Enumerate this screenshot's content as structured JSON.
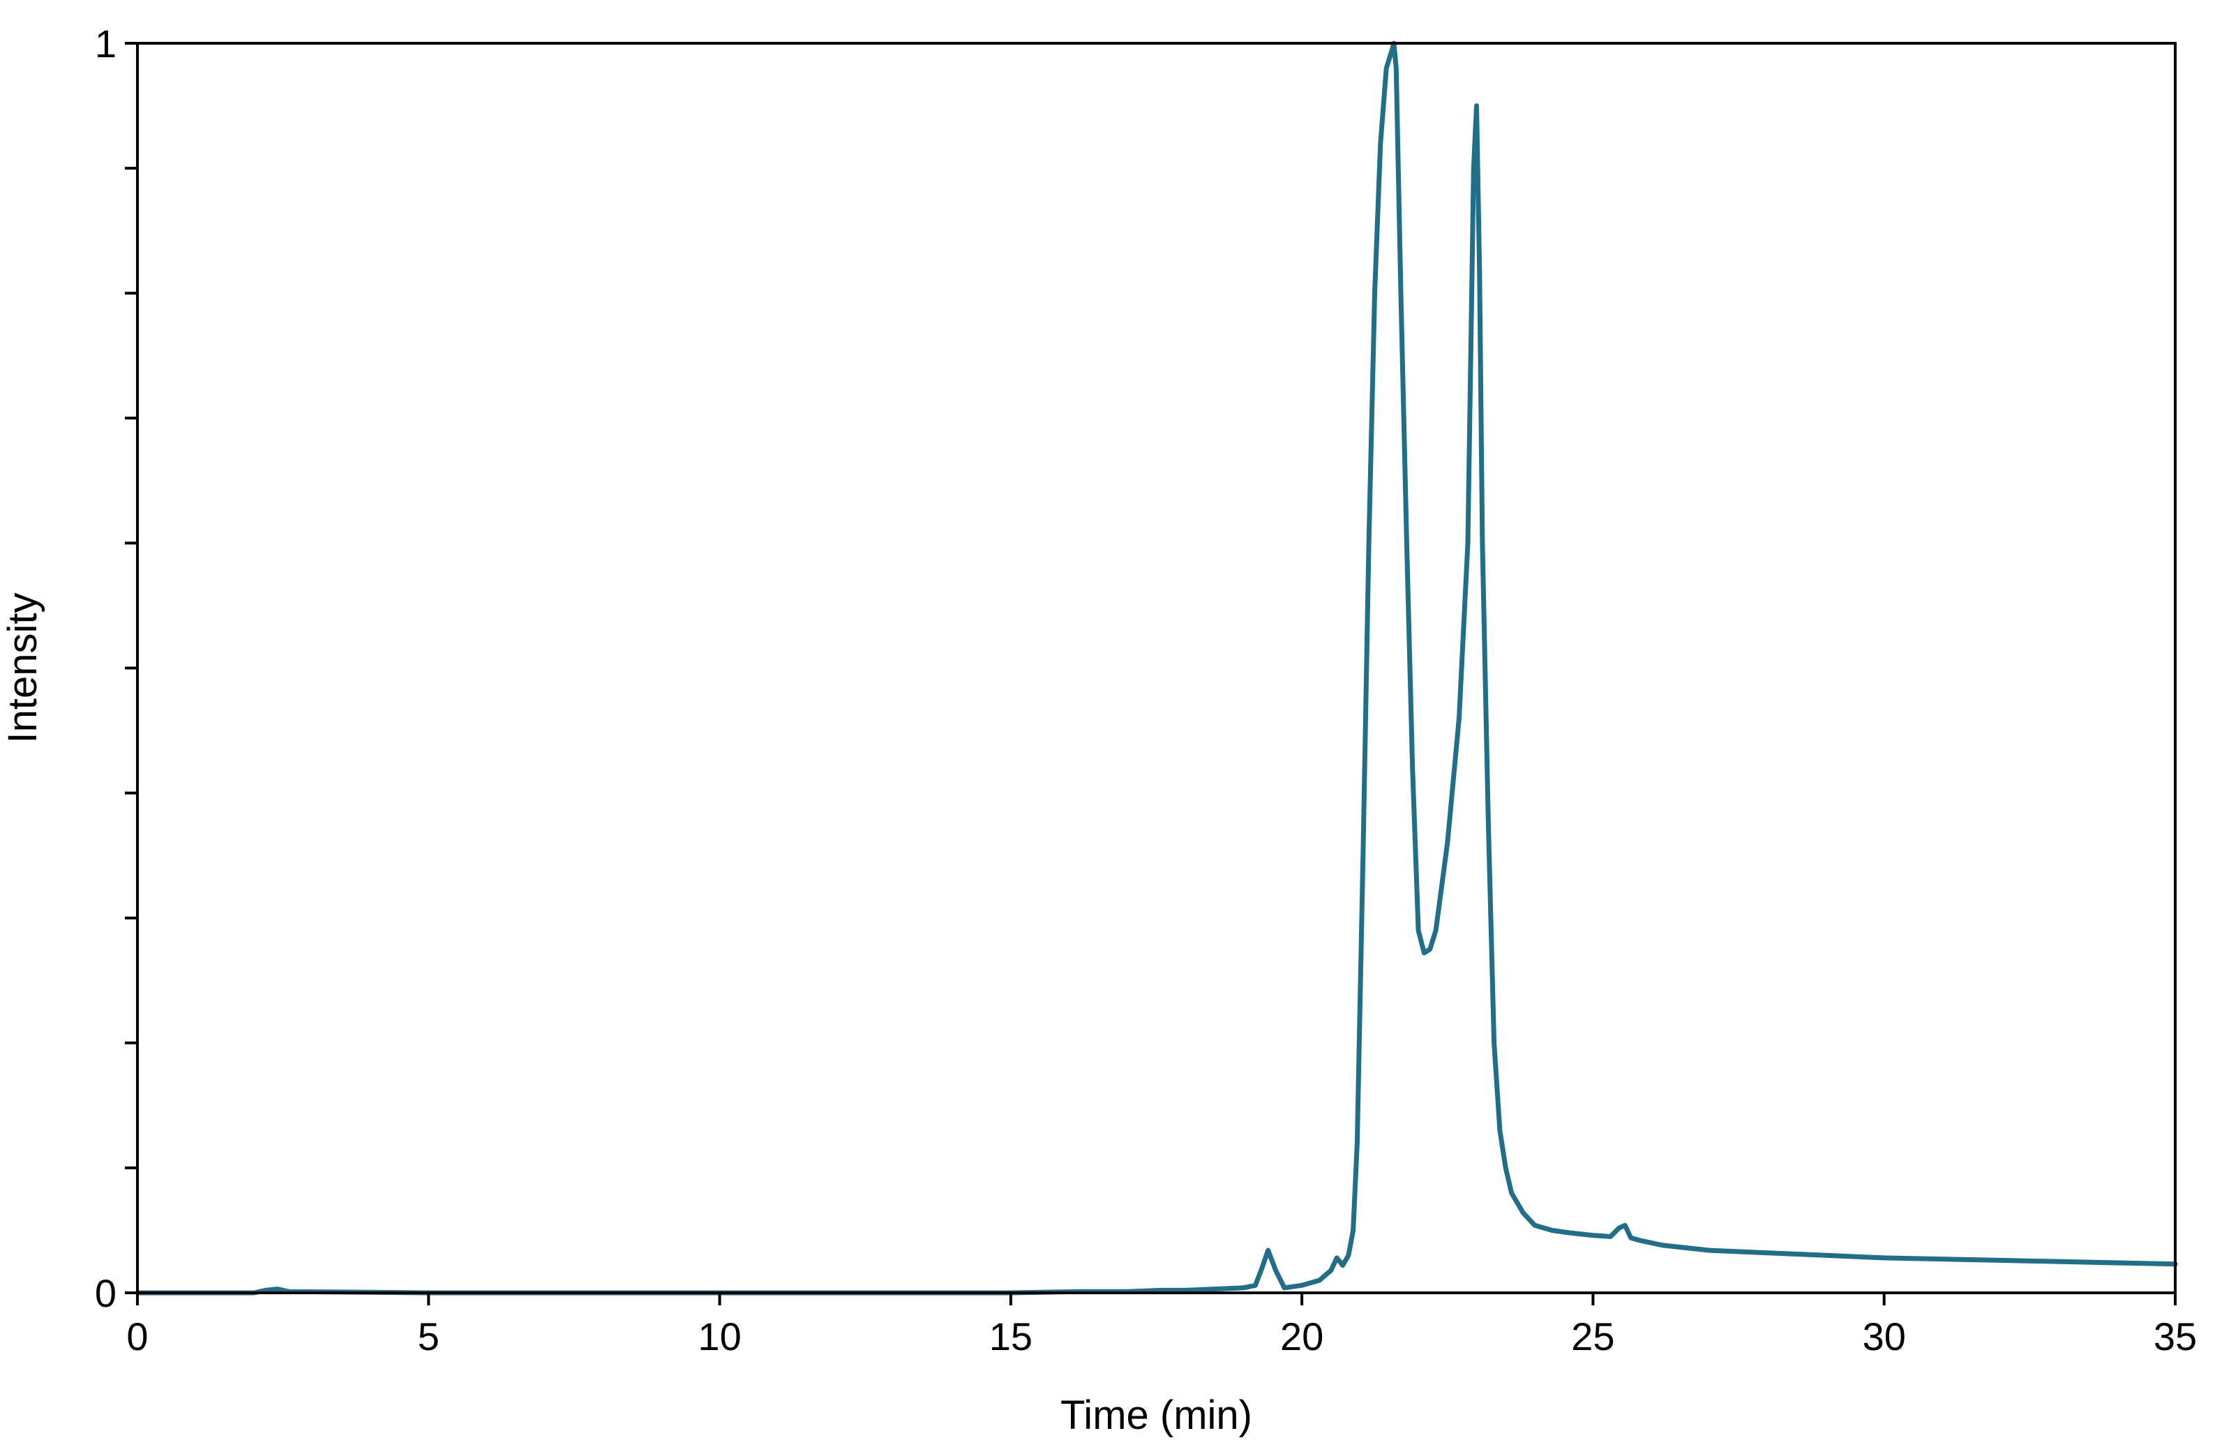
{
  "chart_data": {
    "type": "line",
    "title": "",
    "xlabel": "Time (min)",
    "ylabel": "Intensity",
    "xlim": [
      0,
      35
    ],
    "ylim": [
      0,
      1
    ],
    "x_ticks": [
      0,
      5,
      10,
      15,
      20,
      25,
      30,
      35
    ],
    "y_tick_labels": [
      {
        "value": 0,
        "label": "0"
      },
      {
        "value": 1,
        "label": "1"
      }
    ],
    "y_minor_ticks": [
      0.1,
      0.2,
      0.3,
      0.4,
      0.5,
      0.6,
      0.7,
      0.8,
      0.9
    ],
    "grid": false,
    "legend": "none",
    "colors": {
      "line": "#1f6f8b",
      "axes": "#000000"
    },
    "series": [
      {
        "x": [
          0,
          2.0,
          2.2,
          2.4,
          2.6,
          5,
          10,
          15,
          16.2,
          17.0,
          17.6,
          18.0,
          18.5,
          19.0,
          19.2,
          19.3,
          19.42,
          19.55,
          19.7,
          20.0,
          20.3,
          20.5,
          20.6,
          20.7,
          20.8,
          20.88,
          20.95,
          21.05,
          21.15,
          21.25,
          21.35,
          21.45,
          21.55,
          21.58,
          21.62,
          21.7,
          21.8,
          21.9,
          22.0,
          22.1,
          22.2,
          22.3,
          22.5,
          22.7,
          22.85,
          22.9,
          22.95,
          23.0,
          23.05,
          23.1,
          23.2,
          23.3,
          23.4,
          23.5,
          23.6,
          23.8,
          24.0,
          24.3,
          24.6,
          25.0,
          25.3,
          25.45,
          25.55,
          25.65,
          25.8,
          26.2,
          27.0,
          28.0,
          29.0,
          30.0,
          32.0,
          35.0
        ],
        "y": [
          0,
          0,
          0.002,
          0.003,
          0.001,
          0,
          0,
          0,
          0.001,
          0.001,
          0.002,
          0.002,
          0.003,
          0.004,
          0.006,
          0.018,
          0.034,
          0.018,
          0.004,
          0.006,
          0.01,
          0.018,
          0.028,
          0.022,
          0.03,
          0.05,
          0.12,
          0.35,
          0.6,
          0.8,
          0.92,
          0.98,
          0.995,
          1.0,
          0.98,
          0.8,
          0.6,
          0.42,
          0.29,
          0.272,
          0.275,
          0.29,
          0.36,
          0.46,
          0.6,
          0.75,
          0.9,
          0.95,
          0.82,
          0.6,
          0.38,
          0.2,
          0.13,
          0.1,
          0.08,
          0.064,
          0.054,
          0.05,
          0.048,
          0.046,
          0.045,
          0.052,
          0.054,
          0.044,
          0.042,
          0.038,
          0.034,
          0.032,
          0.03,
          0.028,
          0.026,
          0.023
        ]
      }
    ]
  }
}
